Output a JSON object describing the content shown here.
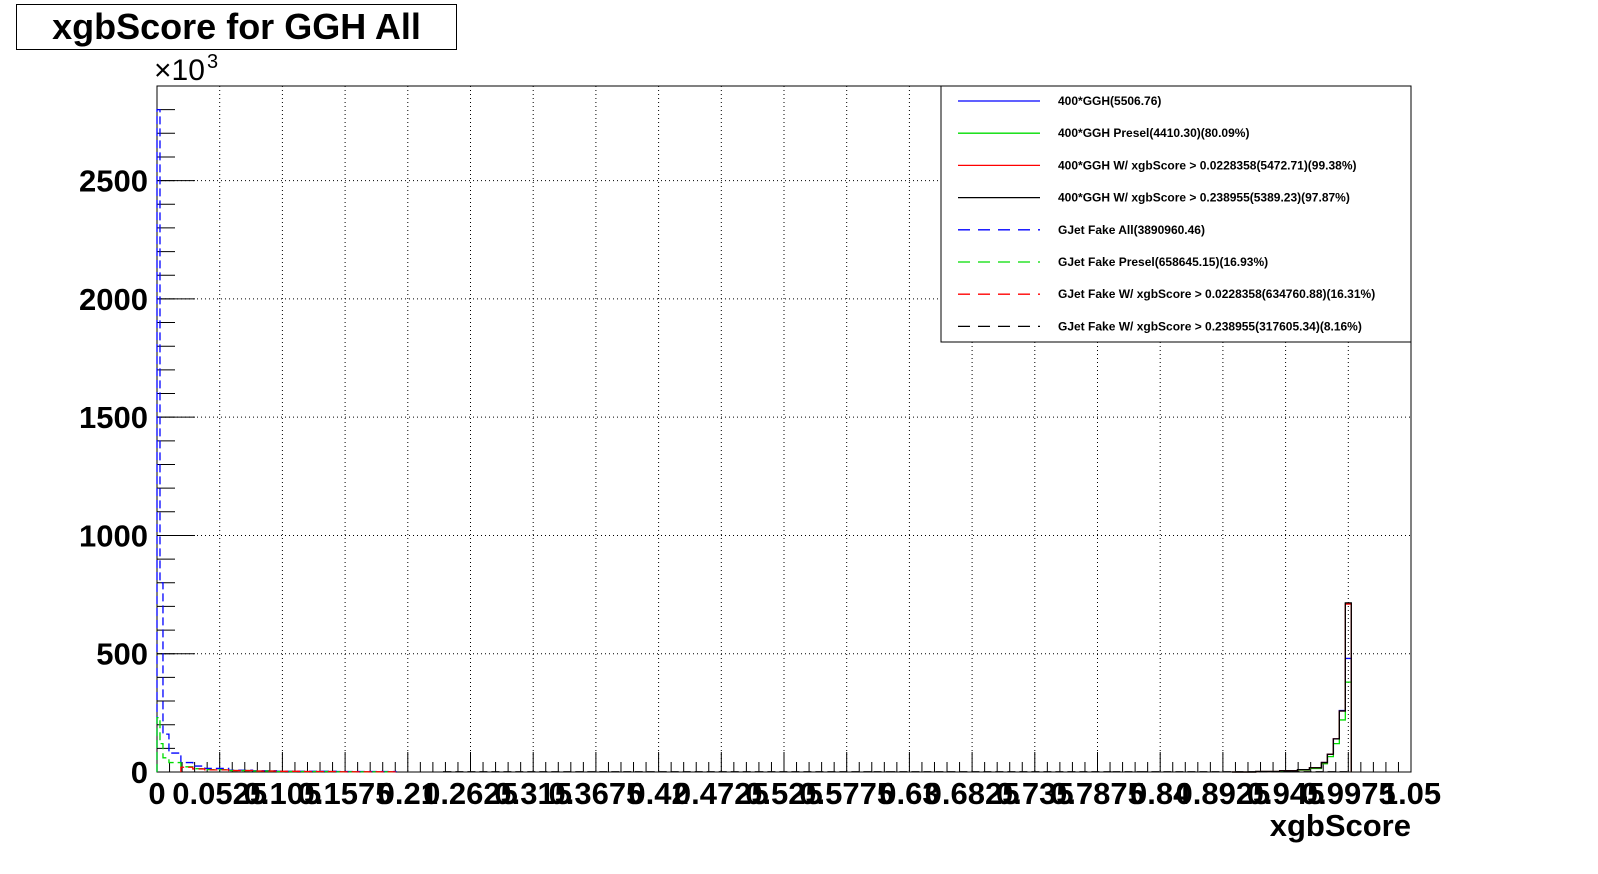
{
  "chart_data": {
    "type": "line",
    "title": "xgbScore for GGH All",
    "xlabel": "xgbScore",
    "ylabel": "",
    "y_multiplier": "×10",
    "y_multiplier_exp": "3",
    "xlim": [
      0,
      1.05
    ],
    "ylim": [
      0,
      2900
    ],
    "grid": true,
    "legend_position": "top-right",
    "x_ticks": [
      {
        "value": 0,
        "label": "0"
      },
      {
        "value": 0.0525,
        "label": "0.0525"
      },
      {
        "value": 0.105,
        "label": "0.105"
      },
      {
        "value": 0.1575,
        "label": "0.1575"
      },
      {
        "value": 0.21,
        "label": "0.21"
      },
      {
        "value": 0.2625,
        "label": "0.2625"
      },
      {
        "value": 0.315,
        "label": "0.315"
      },
      {
        "value": 0.3675,
        "label": "0.3675"
      },
      {
        "value": 0.42,
        "label": "0.42"
      },
      {
        "value": 0.4725,
        "label": "0.4725"
      },
      {
        "value": 0.525,
        "label": "0.525"
      },
      {
        "value": 0.5775,
        "label": "0.5775"
      },
      {
        "value": 0.63,
        "label": "0.63"
      },
      {
        "value": 0.6825,
        "label": "0.6825"
      },
      {
        "value": 0.735,
        "label": "0.735"
      },
      {
        "value": 0.7875,
        "label": "0.7875"
      },
      {
        "value": 0.84,
        "label": "0.84"
      },
      {
        "value": 0.8925,
        "label": "0.8925"
      },
      {
        "value": 0.945,
        "label": "0.945"
      },
      {
        "value": 0.9975,
        "label": "0.9975"
      },
      {
        "value": 1.05,
        "label": "1.05"
      }
    ],
    "y_ticks": [
      {
        "value": 0,
        "label": "0"
      },
      {
        "value": 500,
        "label": "500"
      },
      {
        "value": 1000,
        "label": "1000"
      },
      {
        "value": 1500,
        "label": "1500"
      },
      {
        "value": 2000,
        "label": "2000"
      },
      {
        "value": 2500,
        "label": "2500"
      }
    ],
    "series": [
      {
        "name": "400*GGH(5506.76)",
        "color": "#0000ff",
        "dash": "solid",
        "x": [
          0.9,
          0.92,
          0.94,
          0.955,
          0.965,
          0.975,
          0.98,
          0.985,
          0.99,
          0.995,
          1.0
        ],
        "y": [
          0,
          2,
          5,
          10,
          18,
          40,
          75,
          140,
          260,
          480,
          0
        ]
      },
      {
        "name": "400*GGH Presel(4410.30)(80.09%)",
        "color": "#00dd00",
        "dash": "solid",
        "x": [
          0.9,
          0.92,
          0.94,
          0.955,
          0.965,
          0.975,
          0.98,
          0.985,
          0.99,
          0.995,
          1.0
        ],
        "y": [
          0,
          2,
          4,
          8,
          15,
          35,
          65,
          120,
          220,
          380,
          0
        ]
      },
      {
        "name": "400*GGH W/ xgbScore > 0.0228358(5472.71)(99.38%)",
        "color": "#ff0000",
        "dash": "solid",
        "x": [
          0.9,
          0.92,
          0.94,
          0.955,
          0.965,
          0.975,
          0.98,
          0.985,
          0.99,
          0.995,
          1.0
        ],
        "y": [
          0,
          2,
          5,
          10,
          18,
          40,
          75,
          140,
          258,
          710,
          0
        ]
      },
      {
        "name": "400*GGH W/ xgbScore > 0.238955(5389.23)(97.87%)",
        "color": "#000000",
        "dash": "solid",
        "x": [
          0.9,
          0.92,
          0.94,
          0.955,
          0.965,
          0.975,
          0.98,
          0.985,
          0.99,
          0.995,
          1.0
        ],
        "y": [
          0,
          2,
          5,
          10,
          18,
          40,
          75,
          140,
          258,
          715,
          0
        ]
      },
      {
        "name": "GJet Fake All(3890960.46)",
        "color": "#0000ff",
        "dash": "dashed",
        "x": [
          0,
          0.0025,
          0.005,
          0.01,
          0.02,
          0.03,
          0.04,
          0.06,
          0.08,
          0.1,
          0.15,
          0.2
        ],
        "y": [
          2800,
          800,
          160,
          80,
          40,
          25,
          15,
          8,
          5,
          3,
          2,
          0
        ]
      },
      {
        "name": "GJet Fake Presel(658645.15)(16.93%)",
        "color": "#00dd00",
        "dash": "dashed",
        "x": [
          0,
          0.0025,
          0.005,
          0.01,
          0.02,
          0.03,
          0.04,
          0.06,
          0.08,
          0.1,
          0.15,
          0.2
        ],
        "y": [
          230,
          120,
          60,
          40,
          22,
          14,
          10,
          6,
          4,
          2,
          1,
          0
        ]
      },
      {
        "name": "GJet Fake W/ xgbScore > 0.0228358(634760.88)(16.31%)",
        "color": "#ff0000",
        "dash": "dashed",
        "x": [
          0.02,
          0.03,
          0.04,
          0.06,
          0.08,
          0.1,
          0.12,
          0.15,
          0.2
        ],
        "y": [
          20,
          13,
          9,
          6,
          4,
          3,
          2,
          1,
          0
        ]
      },
      {
        "name": "GJet Fake W/ xgbScore > 0.238955(317605.34)(8.16%)",
        "color": "#000000",
        "dash": "dashed",
        "x": [
          0.24,
          0.3,
          0.4,
          0.6,
          0.8,
          0.95,
          1.0
        ],
        "y": [
          1,
          1,
          1,
          1,
          1,
          1,
          0
        ]
      }
    ]
  }
}
